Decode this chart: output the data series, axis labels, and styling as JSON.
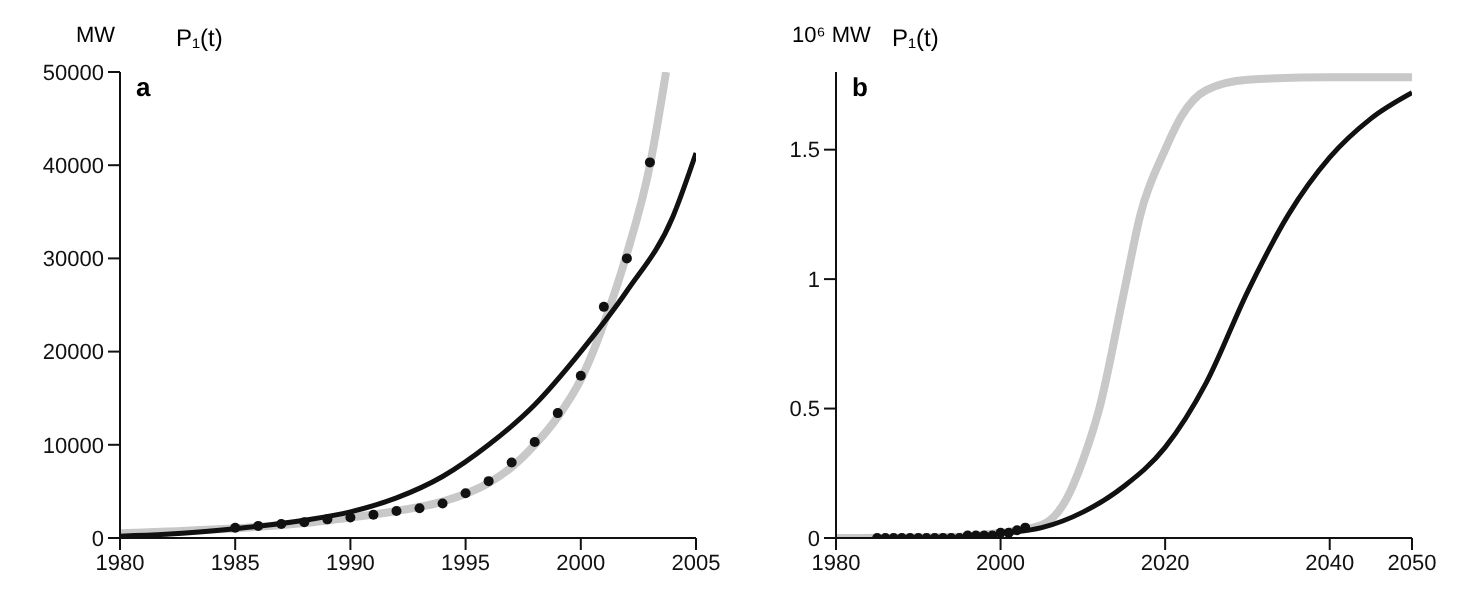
{
  "chart_data": [
    {
      "type": "line",
      "title": "P₁(t)",
      "ylabel": "MW",
      "annotations": [
        "a"
      ],
      "xlim": [
        1980,
        2005
      ],
      "xticks": [
        1980,
        1985,
        1990,
        1995,
        2000,
        2005
      ],
      "ylim": [
        0,
        50000
      ],
      "yticks": [
        0,
        10000,
        20000,
        30000,
        40000,
        50000
      ],
      "grid": false,
      "legend": false,
      "series": [
        {
          "color": "#c8c8c8",
          "x": [
            1980,
            1982,
            1984,
            1986,
            1988,
            1990,
            1992,
            1994,
            1996,
            1997,
            1998,
            1999,
            2000,
            2001,
            2002,
            2003,
            2003.7
          ],
          "values": [
            500,
            700,
            900,
            1200,
            1600,
            2200,
            2900,
            3900,
            5900,
            7600,
            10000,
            13000,
            17000,
            23000,
            30500,
            40000,
            50000
          ]
        },
        {
          "color": "#111111",
          "x": [
            1980,
            1982,
            1985,
            1988,
            1990,
            1992,
            1994,
            1996,
            1998,
            2000,
            2002,
            2004,
            2005
          ],
          "values": [
            200,
            400,
            1000,
            1900,
            2800,
            4300,
            6600,
            10000,
            14300,
            20000,
            26500,
            34500,
            41300
          ]
        },
        {
          "type": "scatter",
          "marker": "circle",
          "color": "#111111",
          "x": [
            1985,
            1986,
            1987,
            1988,
            1989,
            1990,
            1991,
            1992,
            1993,
            1994,
            1995,
            1996,
            1997,
            1998,
            1999,
            2000,
            2001,
            2002,
            2003
          ],
          "values": [
            1100,
            1300,
            1500,
            1700,
            2000,
            2200,
            2500,
            2900,
            3200,
            3700,
            4800,
            6100,
            8100,
            10300,
            13400,
            17400,
            24800,
            30000,
            40300
          ]
        }
      ]
    },
    {
      "type": "line",
      "title": "P₁(t)",
      "ylabel": "10⁶ MW",
      "annotations": [
        "b"
      ],
      "xlim": [
        1980,
        2050
      ],
      "xticks": [
        1980,
        2000,
        2020,
        2040,
        2050
      ],
      "ylim": [
        0,
        1.8
      ],
      "yticks": [
        0,
        0.5,
        1,
        1.5
      ],
      "grid": false,
      "legend": false,
      "series": [
        {
          "color": "#c8c8c8",
          "x": [
            1980,
            1995,
            2000,
            2005,
            2008,
            2010,
            2012,
            2015,
            2017,
            2020,
            2022,
            2025,
            2030,
            2040,
            2050
          ],
          "values": [
            0,
            0.005,
            0.02,
            0.05,
            0.15,
            0.3,
            0.5,
            0.95,
            1.25,
            1.5,
            1.63,
            1.73,
            1.77,
            1.78,
            1.78
          ]
        },
        {
          "color": "#111111",
          "x": [
            2000,
            2005,
            2010,
            2015,
            2020,
            2025,
            2030,
            2035,
            2040,
            2045,
            2050
          ],
          "values": [
            0.02,
            0.04,
            0.1,
            0.2,
            0.35,
            0.6,
            0.95,
            1.25,
            1.47,
            1.62,
            1.72
          ]
        },
        {
          "type": "scatter",
          "marker": "circle",
          "color": "#111111",
          "x": [
            1985,
            1986,
            1987,
            1988,
            1989,
            1990,
            1991,
            1992,
            1993,
            1994,
            1995,
            1996,
            1997,
            1998,
            1999,
            2000,
            2001,
            2002,
            2003
          ],
          "values": [
            0,
            0,
            0,
            0,
            0,
            0,
            0,
            0,
            0,
            0,
            0,
            0.01,
            0.01,
            0.01,
            0.01,
            0.02,
            0.02,
            0.03,
            0.04
          ]
        }
      ]
    }
  ]
}
